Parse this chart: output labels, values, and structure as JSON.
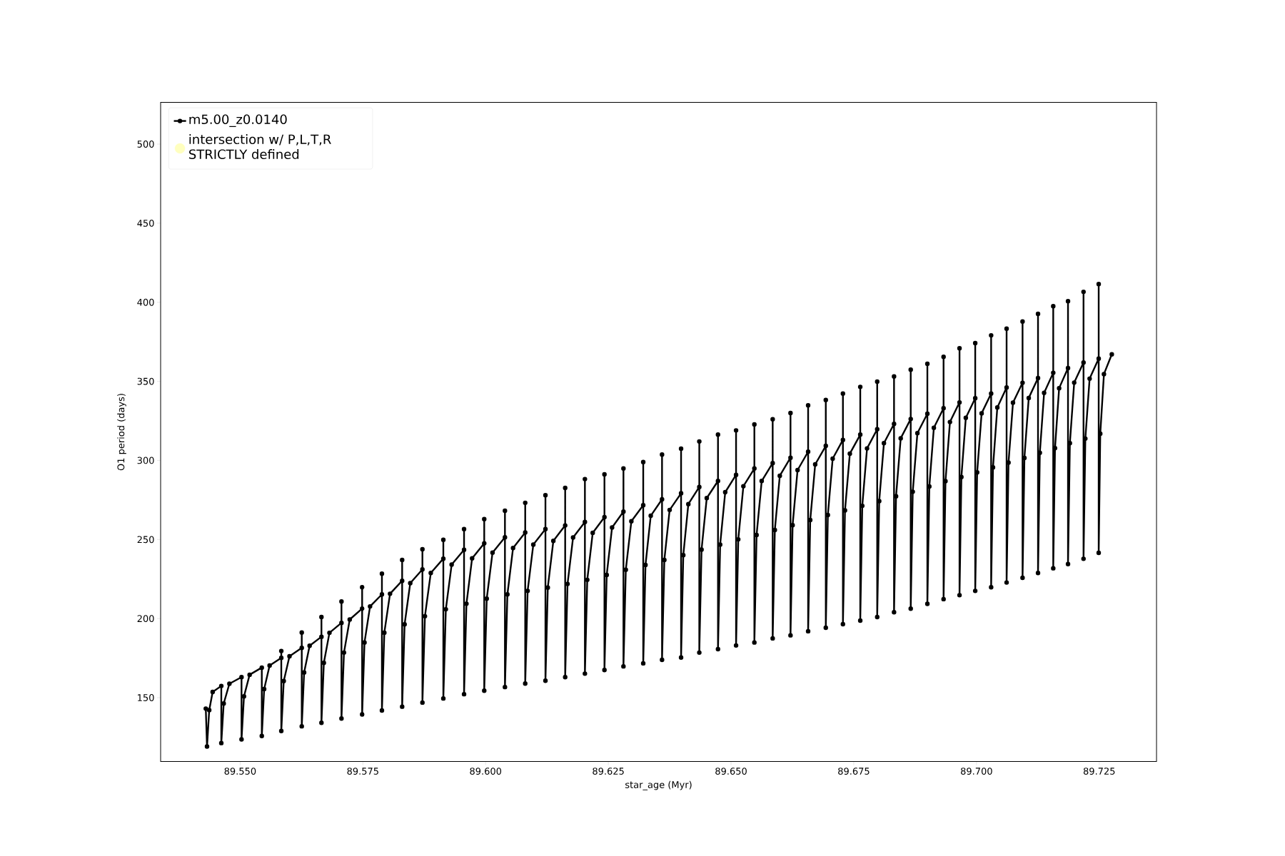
{
  "chart_data": {
    "type": "line",
    "xlabel": "star_age (Myr)",
    "ylabel": "O1 period (days)",
    "xlim": [
      89.5338,
      89.73667
    ],
    "ylim": [
      109.6,
      526.4
    ],
    "xticks": [
      {
        "value": 89.55,
        "label": "89.550"
      },
      {
        "value": 89.575,
        "label": "89.575"
      },
      {
        "value": 89.6,
        "label": "89.600"
      },
      {
        "value": 89.625,
        "label": "89.625"
      },
      {
        "value": 89.65,
        "label": "89.650"
      },
      {
        "value": 89.675,
        "label": "89.675"
      },
      {
        "value": 89.7,
        "label": "89.700"
      },
      {
        "value": 89.725,
        "label": "89.725"
      }
    ],
    "yticks": [
      150,
      200,
      250,
      300,
      350,
      400,
      450,
      500
    ],
    "legend": "top left",
    "marker": "circle",
    "grid": false,
    "series": [
      {
        "name": "m5.00_z0.0140",
        "color": "#000000",
        "x": [
          89.543,
          89.54325,
          89.5437,
          89.5444,
          89.54616,
          89.54616,
          89.54665,
          89.54781,
          89.55028,
          89.55028,
          89.55078,
          89.55193,
          89.55441,
          89.55441,
          89.55489,
          89.556,
          89.55838,
          89.55838,
          89.55838,
          89.55888,
          89.56005,
          89.56255,
          89.56255,
          89.56255,
          89.56303,
          89.56415,
          89.56656,
          89.56656,
          89.56656,
          89.56705,
          89.56819,
          89.57064,
          89.57064,
          89.57064,
          89.57115,
          89.57232,
          89.57485,
          89.57485,
          89.57485,
          89.57533,
          89.57646,
          89.57888,
          89.57888,
          89.57888,
          89.57937,
          89.58053,
          89.583,
          89.583,
          89.583,
          89.5835,
          89.58465,
          89.58713,
          89.58713,
          89.58713,
          89.58764,
          89.58883,
          89.59139,
          89.59139,
          89.59139,
          89.5919,
          89.59308,
          89.59561,
          89.59561,
          89.59561,
          89.5961,
          89.59725,
          89.59972,
          89.59972,
          89.59972,
          89.60023,
          89.60141,
          89.60394,
          89.60394,
          89.60394,
          89.60444,
          89.60559,
          89.60807,
          89.60807,
          89.60807,
          89.60856,
          89.60972,
          89.61219,
          89.61219,
          89.61219,
          89.61267,
          89.6138,
          89.61621,
          89.61621,
          89.61621,
          89.61669,
          89.61782,
          89.62023,
          89.62023,
          89.62023,
          89.62071,
          89.62182,
          89.62421,
          89.62421,
          89.62421,
          89.62467,
          89.62576,
          89.62808,
          89.62808,
          89.62808,
          89.62856,
          89.62969,
          89.63211,
          89.63211,
          89.63211,
          89.63257,
          89.63364,
          89.63594,
          89.63594,
          89.63594,
          89.63641,
          89.63749,
          89.63982,
          89.63982,
          89.63982,
          89.64027,
          89.6413,
          89.64353,
          89.64353,
          89.64353,
          89.64399,
          89.64505,
          89.64734,
          89.64734,
          89.64734,
          89.64778,
          89.64881,
          89.65102,
          89.65102,
          89.65102,
          89.65147,
          89.65251,
          89.65475,
          89.65475,
          89.65475,
          89.6552,
          89.65624,
          89.65848,
          89.65848,
          89.65848,
          89.65892,
          89.65993,
          89.66211,
          89.66211,
          89.66211,
          89.66254,
          89.66355,
          89.6657,
          89.6657,
          89.6657,
          89.66613,
          89.66714,
          89.6693,
          89.6693,
          89.6693,
          89.66972,
          89.6707,
          89.67279,
          89.67279,
          89.67279,
          89.67321,
          89.6742,
          89.67632,
          89.67632,
          89.67632,
          89.67673,
          89.6777,
          89.67977,
          89.67977,
          89.67977,
          89.68018,
          89.68114,
          89.6832,
          89.6832,
          89.6832,
          89.68361,
          89.68456,
          89.6866,
          89.6866,
          89.6866,
          89.68701,
          89.68796,
          89.68999,
          89.68999,
          89.68999,
          89.69039,
          89.69131,
          89.69329,
          89.69329,
          89.69329,
          89.69368,
          89.69459,
          89.69654,
          89.69654,
          89.69654,
          89.69692,
          89.69782,
          89.69974,
          89.69974,
          89.69974,
          89.70013,
          89.70104,
          89.70298,
          89.70298,
          89.70298,
          89.70336,
          89.70424,
          89.70613,
          89.70613,
          89.70613,
          89.70652,
          89.70743,
          89.70938,
          89.70938,
          89.70938,
          89.70976,
          89.71064,
          89.71253,
          89.71253,
          89.71253,
          89.7129,
          89.71377,
          89.71563,
          89.71563,
          89.71563,
          89.71599,
          89.71683,
          89.71864,
          89.71864,
          89.71864,
          89.71902,
          89.7199,
          89.7218,
          89.7218,
          89.7218,
          89.72217,
          89.72304,
          89.72489,
          89.72489,
          89.72489,
          89.72521,
          89.72596,
          89.72756
        ],
        "values": [
          143.1,
          119.1,
          142.1,
          153.6,
          157.4,
          121.3,
          146.3,
          158.8,
          163.0,
          123.6,
          150.8,
          164.5,
          169.0,
          125.8,
          155.4,
          170.3,
          175.2,
          179.5,
          128.9,
          160.5,
          176.2,
          181.5,
          191.2,
          131.9,
          165.9,
          182.8,
          188.5,
          201.0,
          134.1,
          172.0,
          191.0,
          197.3,
          210.8,
          136.8,
          178.5,
          199.4,
          206.3,
          219.8,
          139.4,
          184.9,
          207.7,
          215.3,
          228.4,
          141.9,
          191.1,
          215.7,
          223.9,
          237.1,
          144.3,
          196.4,
          222.4,
          231.1,
          243.8,
          146.9,
          201.5,
          228.8,
          237.9,
          249.8,
          149.5,
          205.9,
          234.1,
          243.5,
          256.6,
          152.2,
          209.4,
          238.1,
          247.6,
          262.9,
          154.4,
          212.6,
          241.7,
          251.4,
          268.2,
          156.7,
          215.3,
          244.6,
          254.4,
          273.2,
          158.9,
          217.5,
          246.8,
          256.6,
          278.0,
          160.7,
          219.6,
          249.1,
          258.9,
          282.6,
          163.0,
          221.9,
          251.3,
          261.1,
          288.2,
          165.2,
          224.5,
          254.2,
          264.1,
          291.2,
          167.5,
          227.6,
          257.6,
          267.6,
          294.9,
          169.8,
          230.9,
          261.5,
          271.7,
          299.0,
          171.7,
          233.9,
          265.0,
          275.4,
          303.7,
          173.9,
          237.1,
          268.7,
          279.2,
          307.4,
          175.4,
          240.1,
          272.4,
          283.2,
          312.0,
          178.5,
          243.6,
          276.2,
          287.0,
          316.3,
          180.7,
          246.8,
          279.9,
          290.9,
          319.0,
          183.0,
          250.1,
          283.7,
          294.9,
          322.8,
          184.9,
          252.9,
          287.0,
          298.3,
          326.0,
          187.5,
          256.0,
          290.3,
          301.7,
          330.0,
          189.4,
          259.1,
          293.9,
          305.5,
          334.8,
          192.0,
          262.3,
          297.5,
          309.2,
          338.2,
          194.2,
          265.5,
          301.1,
          313.0,
          342.3,
          196.5,
          268.4,
          304.3,
          316.3,
          346.5,
          198.7,
          271.3,
          307.6,
          319.7,
          349.8,
          201.0,
          274.3,
          310.9,
          323.1,
          353.1,
          204.0,
          277.3,
          314.0,
          326.2,
          357.4,
          206.3,
          280.2,
          317.2,
          329.5,
          361.1,
          209.3,
          283.5,
          320.6,
          333.0,
          365.5,
          212.3,
          286.9,
          324.3,
          336.7,
          370.9,
          214.8,
          289.5,
          326.9,
          339.3,
          374.2,
          217.5,
          292.4,
          329.8,
          342.3,
          379.1,
          219.8,
          295.6,
          333.5,
          346.1,
          383.3,
          222.8,
          298.6,
          336.5,
          349.1,
          387.8,
          225.8,
          301.6,
          339.5,
          352.1,
          392.7,
          228.8,
          304.8,
          342.7,
          355.4,
          397.5,
          231.8,
          307.8,
          345.7,
          358.4,
          400.7,
          234.5,
          310.9,
          349.2,
          361.9,
          406.6,
          237.8,
          313.8,
          351.7,
          364.4,
          411.5,
          241.6,
          316.9,
          354.6,
          367.1
        ]
      },
      {
        "name": "intersection w/ P,L,T,R STRICTLY defined",
        "color": "#ffffbf",
        "type": "scatter"
      }
    ]
  }
}
